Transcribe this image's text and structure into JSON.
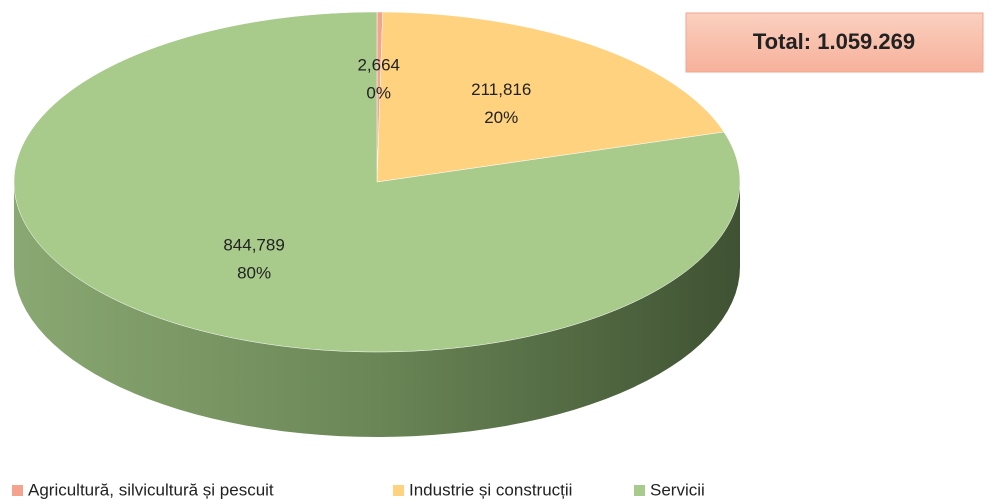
{
  "chart_data": {
    "type": "pie",
    "categories": [
      "Agricultură, silvicultură și pescuit",
      "Industrie și construcții",
      "Servicii"
    ],
    "values": [
      2664,
      211816,
      844789
    ],
    "value_labels": [
      "2,664",
      "211,816",
      "844,789"
    ],
    "percents": [
      0,
      20,
      80
    ],
    "percent_labels": [
      "0%",
      "20%",
      "80%"
    ],
    "colors": [
      "#f4a38e",
      "#ffd27f",
      "#a8cb8c"
    ],
    "annotation": "Total: 1.059.269",
    "legend": "bottom"
  }
}
